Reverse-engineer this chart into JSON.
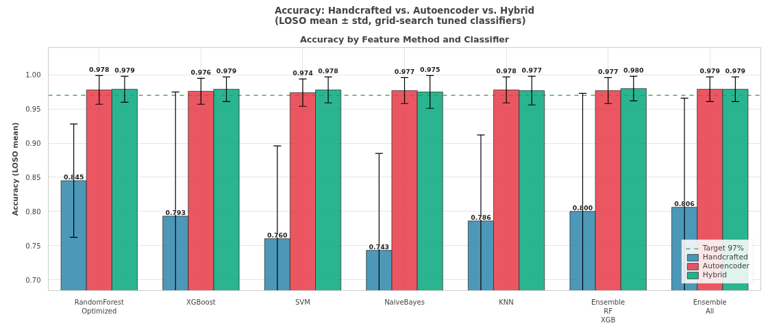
{
  "chart_data": {
    "type": "bar",
    "title": "Accuracy: Handcrafted vs. Autoencoder vs. Hybrid\n(LOSO mean ± std, grid-search tuned classifiers)",
    "subtitle": "Accuracy by Feature Method and Classifier",
    "ylabel": "Accuracy (LOSO mean)",
    "categories": [
      "RandomForest\nOptimized",
      "XGBoost",
      "SVM",
      "NaiveBayes",
      "KNN",
      "Ensemble\nRF\nXGB",
      "Ensemble\nAll"
    ],
    "series": [
      {
        "name": "Handcrafted",
        "color": "#2e86ab",
        "values": [
          0.845,
          0.793,
          0.76,
          0.743,
          0.786,
          0.8,
          0.806
        ],
        "errors": [
          0.083,
          [
            0.684,
            0.975
          ],
          [
            0.684,
            0.896
          ],
          [
            0.684,
            0.885
          ],
          [
            0.684,
            0.912
          ],
          [
            0.684,
            0.973
          ],
          [
            0.684,
            0.966
          ]
        ],
        "value_labels": [
          "0.845",
          "0.793",
          "0.760",
          "0.743",
          "0.786",
          "0.800",
          "0.806"
        ]
      },
      {
        "name": "Autoencoder",
        "color": "#e63946",
        "values": [
          0.978,
          0.976,
          0.974,
          0.977,
          0.978,
          0.977,
          0.979
        ],
        "errors": [
          0.021,
          0.019,
          0.02,
          0.019,
          0.019,
          0.019,
          0.018
        ],
        "value_labels": [
          "0.978",
          "0.976",
          "0.974",
          "0.977",
          "0.978",
          "0.977",
          "0.979"
        ]
      },
      {
        "name": "Hybrid",
        "color": "#06a77d",
        "values": [
          0.979,
          0.979,
          0.978,
          0.975,
          0.977,
          0.98,
          0.979
        ],
        "errors": [
          0.019,
          0.018,
          0.019,
          0.024,
          0.021,
          0.018,
          0.018
        ],
        "value_labels": [
          "0.979",
          "0.979",
          "0.978",
          "0.975",
          "0.977",
          "0.980",
          "0.979"
        ]
      }
    ],
    "ylim": [
      0.684,
      1.04
    ],
    "yticks": [
      {
        "value": 0.7,
        "label": "0.70"
      },
      {
        "value": 0.75,
        "label": "0.75"
      },
      {
        "value": 0.8,
        "label": "0.80"
      },
      {
        "value": 0.85,
        "label": "0.85"
      },
      {
        "value": 0.9,
        "label": "0.90"
      },
      {
        "value": 0.95,
        "label": "0.95"
      },
      {
        "value": 1.0,
        "label": "1.00"
      }
    ],
    "ref_lines": [
      {
        "axis": "y",
        "value": 0.97,
        "label": "Target 97%",
        "color": "#4caf50",
        "line_style": "dashed"
      }
    ],
    "grid": true,
    "legend": "bottom right"
  }
}
